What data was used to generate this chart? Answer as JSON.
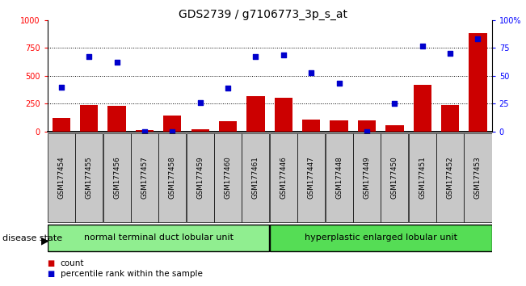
{
  "title": "GDS2739 / g7106773_3p_s_at",
  "samples": [
    "GSM177454",
    "GSM177455",
    "GSM177456",
    "GSM177457",
    "GSM177458",
    "GSM177459",
    "GSM177460",
    "GSM177461",
    "GSM177446",
    "GSM177447",
    "GSM177448",
    "GSM177449",
    "GSM177450",
    "GSM177451",
    "GSM177452",
    "GSM177453"
  ],
  "counts": [
    120,
    240,
    230,
    15,
    145,
    20,
    90,
    320,
    300,
    110,
    100,
    100,
    55,
    420,
    235,
    880
  ],
  "percentiles": [
    40,
    67,
    62,
    0,
    0,
    26,
    39,
    67,
    69,
    53,
    43,
    0,
    25,
    77,
    70,
    83
  ],
  "group1_label": "normal terminal duct lobular unit",
  "group2_label": "hyperplastic enlarged lobular unit",
  "group1_count": 8,
  "group2_count": 8,
  "bar_color": "#cc0000",
  "dot_color": "#0000cc",
  "group1_bg": "#90ee90",
  "group2_bg": "#55dd55",
  "xticklabel_bg": "#c8c8c8",
  "ylim_left": [
    0,
    1000
  ],
  "ylim_right": [
    0,
    100
  ],
  "yticks_left": [
    0,
    250,
    500,
    750,
    1000
  ],
  "yticks_right": [
    0,
    25,
    50,
    75,
    100
  ],
  "legend_count_label": "count",
  "legend_pct_label": "percentile rank within the sample",
  "title_fontsize": 10,
  "tick_fontsize": 7,
  "group_label_fontsize": 8,
  "legend_fontsize": 7.5,
  "disease_state_fontsize": 8
}
